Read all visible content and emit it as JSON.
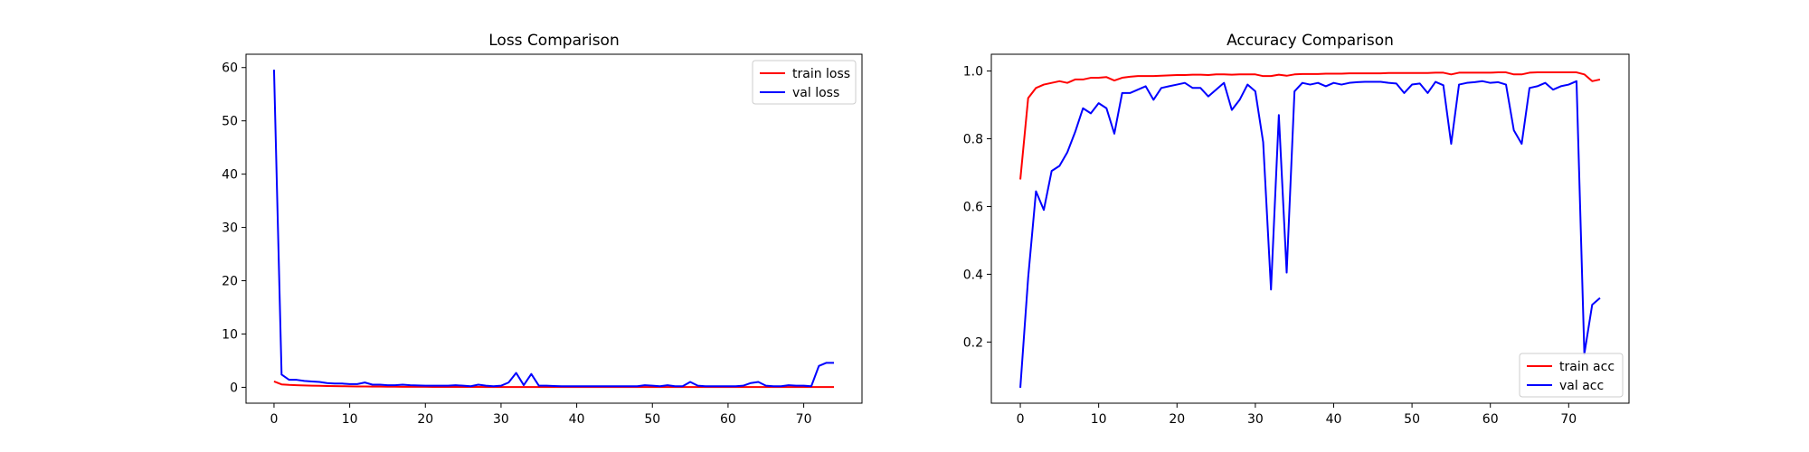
{
  "chart_data": [
    {
      "type": "line",
      "title": "Loss Comparison",
      "xlabel": "",
      "ylabel": "",
      "xlim": [
        -3.7,
        77.7
      ],
      "ylim": [
        -2.98,
        62.5
      ],
      "xticks": [
        0,
        10,
        20,
        30,
        40,
        50,
        60,
        70
      ],
      "yticks": [
        0,
        10,
        20,
        30,
        40,
        50,
        60
      ],
      "grid": false,
      "legend": "top-right",
      "series": [
        {
          "name": "train loss",
          "color": "#ff0000",
          "x": [
            0,
            1,
            2,
            3,
            4,
            5,
            6,
            7,
            8,
            9,
            10,
            11,
            12,
            13,
            14,
            15,
            16,
            17,
            18,
            19,
            20,
            21,
            22,
            23,
            24,
            25,
            26,
            27,
            28,
            29,
            30,
            31,
            32,
            33,
            34,
            35,
            36,
            37,
            38,
            39,
            40,
            41,
            42,
            43,
            44,
            45,
            46,
            47,
            48,
            49,
            50,
            51,
            52,
            53,
            54,
            55,
            56,
            57,
            58,
            59,
            60,
            61,
            62,
            63,
            64,
            65,
            66,
            67,
            68,
            69,
            70,
            71,
            72,
            73,
            74
          ],
          "y": [
            1.1,
            0.55,
            0.45,
            0.4,
            0.35,
            0.3,
            0.28,
            0.25,
            0.22,
            0.2,
            0.18,
            0.16,
            0.15,
            0.14,
            0.13,
            0.12,
            0.11,
            0.1,
            0.1,
            0.09,
            0.09,
            0.08,
            0.08,
            0.08,
            0.07,
            0.07,
            0.07,
            0.07,
            0.06,
            0.06,
            0.06,
            0.06,
            0.06,
            0.06,
            0.06,
            0.06,
            0.05,
            0.05,
            0.05,
            0.05,
            0.05,
            0.05,
            0.05,
            0.05,
            0.05,
            0.05,
            0.05,
            0.05,
            0.05,
            0.05,
            0.05,
            0.05,
            0.05,
            0.05,
            0.05,
            0.05,
            0.05,
            0.05,
            0.05,
            0.05,
            0.05,
            0.05,
            0.05,
            0.05,
            0.05,
            0.05,
            0.05,
            0.05,
            0.05,
            0.05,
            0.05,
            0.05,
            0.05,
            0.05,
            0.05
          ]
        },
        {
          "name": "val loss",
          "color": "#0000ff",
          "x": [
            0,
            1,
            2,
            3,
            4,
            5,
            6,
            7,
            8,
            9,
            10,
            11,
            12,
            13,
            14,
            15,
            16,
            17,
            18,
            19,
            20,
            21,
            22,
            23,
            24,
            25,
            26,
            27,
            28,
            29,
            30,
            31,
            32,
            33,
            34,
            35,
            36,
            37,
            38,
            39,
            40,
            41,
            42,
            43,
            44,
            45,
            46,
            47,
            48,
            49,
            50,
            51,
            52,
            53,
            54,
            55,
            56,
            57,
            58,
            59,
            60,
            61,
            62,
            63,
            64,
            65,
            66,
            67,
            68,
            69,
            70,
            71,
            72,
            73,
            74
          ],
          "y": [
            59.6,
            2.4,
            1.4,
            1.4,
            1.2,
            1.1,
            1.0,
            0.8,
            0.7,
            0.7,
            0.6,
            0.6,
            0.9,
            0.5,
            0.5,
            0.4,
            0.4,
            0.5,
            0.4,
            0.35,
            0.3,
            0.3,
            0.3,
            0.3,
            0.4,
            0.3,
            0.2,
            0.5,
            0.3,
            0.2,
            0.3,
            0.9,
            2.7,
            0.4,
            2.5,
            0.3,
            0.3,
            0.25,
            0.2,
            0.2,
            0.2,
            0.2,
            0.2,
            0.2,
            0.2,
            0.2,
            0.2,
            0.2,
            0.2,
            0.4,
            0.3,
            0.2,
            0.4,
            0.2,
            0.2,
            1.0,
            0.3,
            0.2,
            0.2,
            0.2,
            0.2,
            0.2,
            0.3,
            0.8,
            1.0,
            0.3,
            0.2,
            0.2,
            0.4,
            0.3,
            0.3,
            0.2,
            4.0,
            4.6,
            4.6
          ]
        }
      ]
    },
    {
      "type": "line",
      "title": "Accuracy Comparison",
      "xlabel": "",
      "ylabel": "",
      "xlim": [
        -3.7,
        77.7
      ],
      "ylim": [
        0.0195,
        1.0495
      ],
      "xticks": [
        0,
        10,
        20,
        30,
        40,
        50,
        60,
        70
      ],
      "yticks": [
        0.2,
        0.4,
        0.6,
        0.8,
        1.0
      ],
      "ytick_labels": [
        "0.2",
        "0.4",
        "0.6",
        "0.8",
        "1.0"
      ],
      "grid": false,
      "legend": "bottom-right",
      "series": [
        {
          "name": "train acc",
          "color": "#ff0000",
          "x": [
            0,
            1,
            2,
            3,
            4,
            5,
            6,
            7,
            8,
            9,
            10,
            11,
            12,
            13,
            14,
            15,
            16,
            17,
            18,
            19,
            20,
            21,
            22,
            23,
            24,
            25,
            26,
            27,
            28,
            29,
            30,
            31,
            32,
            33,
            34,
            35,
            36,
            37,
            38,
            39,
            40,
            41,
            42,
            43,
            44,
            45,
            46,
            47,
            48,
            49,
            50,
            51,
            52,
            53,
            54,
            55,
            56,
            57,
            58,
            59,
            60,
            61,
            62,
            63,
            64,
            65,
            66,
            67,
            68,
            69,
            70,
            71,
            72,
            73,
            74
          ],
          "y": [
            0.68,
            0.92,
            0.95,
            0.96,
            0.965,
            0.97,
            0.965,
            0.975,
            0.975,
            0.98,
            0.98,
            0.982,
            0.972,
            0.98,
            0.983,
            0.985,
            0.985,
            0.985,
            0.986,
            0.987,
            0.988,
            0.988,
            0.989,
            0.989,
            0.988,
            0.99,
            0.99,
            0.989,
            0.99,
            0.99,
            0.99,
            0.985,
            0.985,
            0.989,
            0.986,
            0.99,
            0.991,
            0.991,
            0.991,
            0.992,
            0.992,
            0.992,
            0.993,
            0.993,
            0.993,
            0.993,
            0.993,
            0.994,
            0.994,
            0.994,
            0.994,
            0.994,
            0.994,
            0.995,
            0.995,
            0.99,
            0.995,
            0.995,
            0.995,
            0.995,
            0.995,
            0.996,
            0.996,
            0.99,
            0.99,
            0.995,
            0.996,
            0.996,
            0.996,
            0.996,
            0.996,
            0.996,
            0.99,
            0.97,
            0.975
          ]
        },
        {
          "name": "val acc",
          "color": "#0000ff",
          "x": [
            0,
            1,
            2,
            3,
            4,
            5,
            6,
            7,
            8,
            9,
            10,
            11,
            12,
            13,
            14,
            15,
            16,
            17,
            18,
            19,
            20,
            21,
            22,
            23,
            24,
            25,
            26,
            27,
            28,
            29,
            30,
            31,
            32,
            33,
            34,
            35,
            36,
            37,
            38,
            39,
            40,
            41,
            42,
            43,
            44,
            45,
            46,
            47,
            48,
            49,
            50,
            51,
            52,
            53,
            54,
            55,
            56,
            57,
            58,
            59,
            60,
            61,
            62,
            63,
            64,
            65,
            66,
            67,
            68,
            69,
            70,
            71,
            72,
            73,
            74
          ],
          "y": [
            0.065,
            0.39,
            0.645,
            0.59,
            0.705,
            0.72,
            0.76,
            0.82,
            0.89,
            0.875,
            0.905,
            0.89,
            0.815,
            0.935,
            0.935,
            0.945,
            0.955,
            0.915,
            0.95,
            0.955,
            0.96,
            0.965,
            0.95,
            0.95,
            0.925,
            0.945,
            0.965,
            0.885,
            0.915,
            0.96,
            0.94,
            0.79,
            0.355,
            0.87,
            0.405,
            0.94,
            0.965,
            0.96,
            0.965,
            0.955,
            0.965,
            0.96,
            0.965,
            0.967,
            0.968,
            0.968,
            0.968,
            0.965,
            0.963,
            0.935,
            0.96,
            0.963,
            0.935,
            0.968,
            0.958,
            0.785,
            0.96,
            0.965,
            0.967,
            0.97,
            0.965,
            0.967,
            0.96,
            0.825,
            0.785,
            0.95,
            0.955,
            0.965,
            0.945,
            0.955,
            0.96,
            0.97,
            0.165,
            0.31,
            0.33
          ]
        }
      ]
    }
  ]
}
